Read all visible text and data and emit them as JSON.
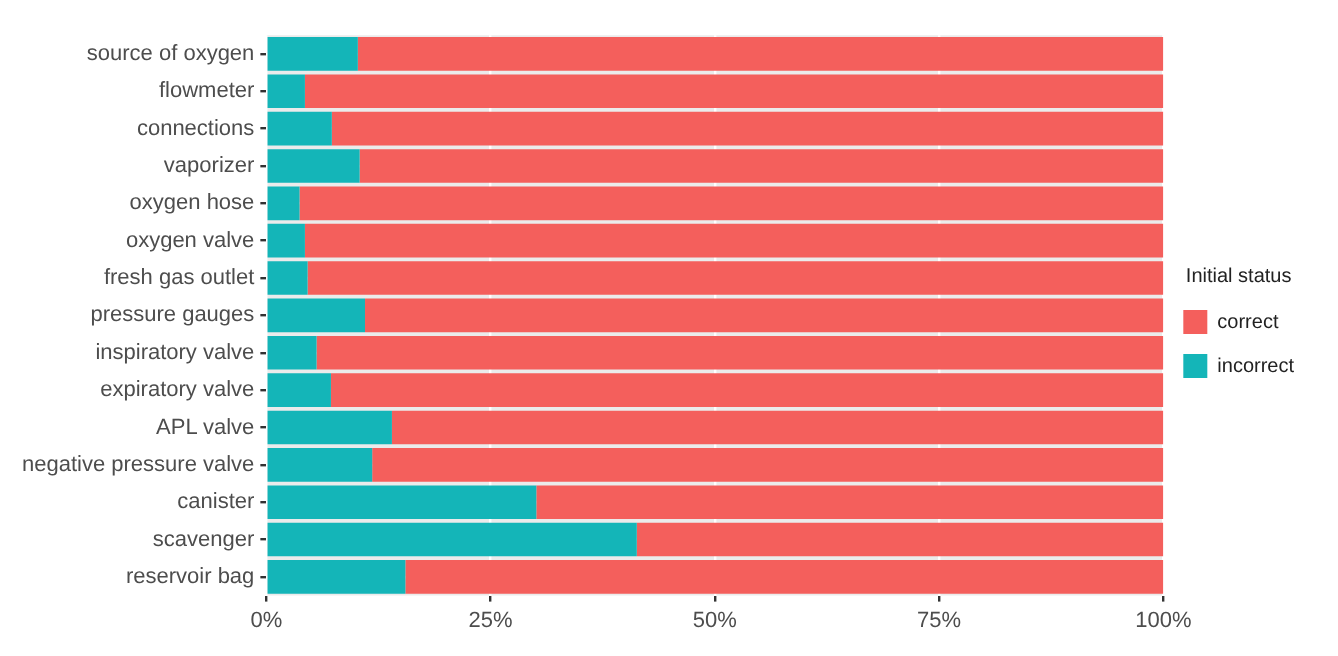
{
  "chart_data": {
    "type": "bar",
    "orientation": "horizontal",
    "stacked": true,
    "legend_title": "Initial status",
    "legend": "right",
    "grid": true,
    "categories": [
      "source of oxygen",
      "flowmeter",
      "connections",
      "vaporizer",
      "oxygen hose",
      "oxygen valve",
      "fresh gas outlet",
      "pressure gauges",
      "inspiratory valve",
      "expiratory valve",
      "APL valve",
      "negative pressure valve",
      "canister",
      "scavenger",
      "reservoir bag"
    ],
    "series": [
      {
        "name": "incorrect",
        "color": "#14b5b8",
        "values": [
          10.2,
          4.3,
          7.3,
          10.4,
          3.7,
          4.3,
          4.6,
          11.0,
          5.6,
          7.2,
          14.0,
          11.8,
          30.1,
          41.3,
          15.5
        ]
      },
      {
        "name": "correct",
        "color": "#f45f5c",
        "values": [
          89.8,
          95.7,
          92.7,
          89.6,
          96.3,
          95.7,
          95.4,
          89.0,
          94.4,
          92.8,
          86.0,
          88.2,
          69.9,
          58.7,
          84.5
        ]
      }
    ],
    "xlim": [
      0,
      100
    ],
    "xticks": [
      {
        "value": 0,
        "label": "0%"
      },
      {
        "value": 25,
        "label": "25%"
      },
      {
        "value": 50,
        "label": "50%"
      },
      {
        "value": 75,
        "label": "75%"
      },
      {
        "value": 100,
        "label": "100%"
      }
    ]
  }
}
